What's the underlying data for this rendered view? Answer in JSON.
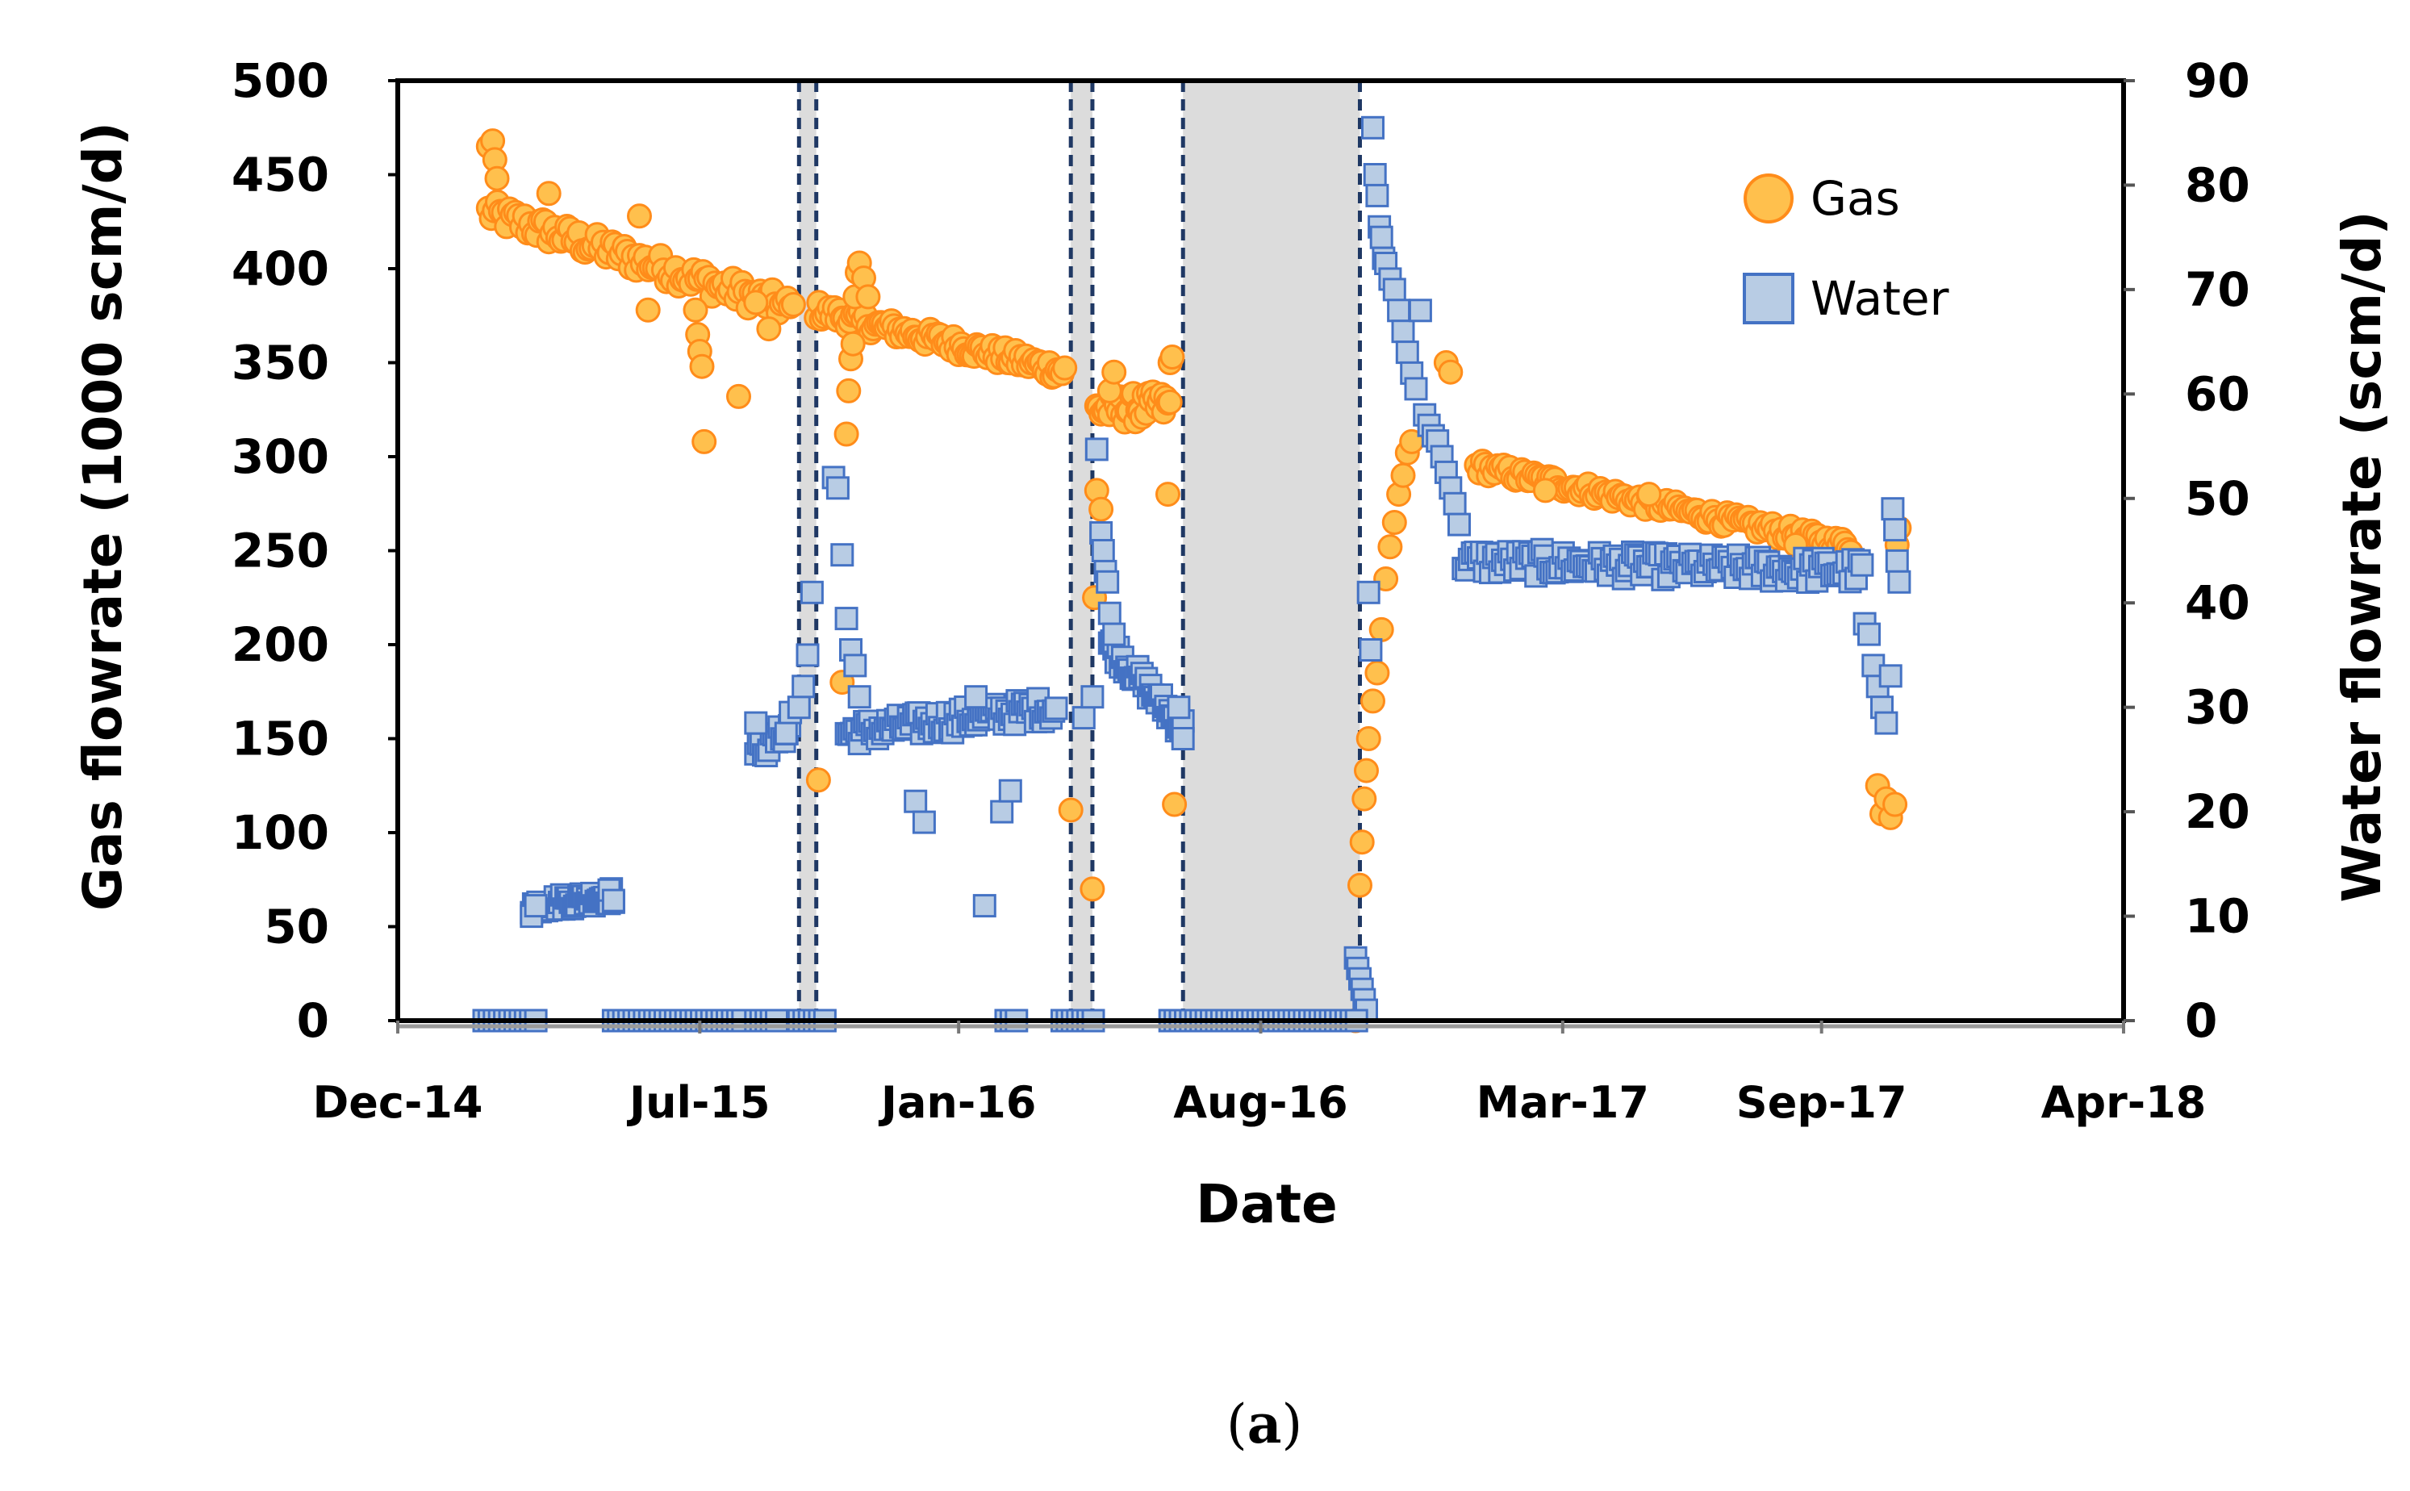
{
  "caption": {
    "open": "(",
    "letter": "a",
    "close": ")"
  },
  "chart_data": {
    "type": "scatter",
    "title": "",
    "xlabel": "Date",
    "ylabel_left": "Gas flowrate (1000 scm/d)",
    "ylabel_right": "Water flowrate (scm/d)",
    "x_unit": "months since Dec-14",
    "x_range": [
      0,
      40
    ],
    "x_ticks": [
      {
        "month": 0,
        "label": "Dec-14"
      },
      {
        "month": 7,
        "label": "Jul-15"
      },
      {
        "month": 13,
        "label": "Jan-16"
      },
      {
        "month": 20,
        "label": "Aug-16"
      },
      {
        "month": 27,
        "label": "Mar-17"
      },
      {
        "month": 33,
        "label": "Sep-17"
      },
      {
        "month": 40,
        "label": "Apr-18"
      }
    ],
    "ylim_left": [
      0,
      500
    ],
    "yticks_left": [
      0,
      50,
      100,
      150,
      200,
      250,
      300,
      350,
      400,
      450,
      500
    ],
    "ylim_right": [
      0,
      90
    ],
    "yticks_right": [
      0,
      10,
      20,
      30,
      40,
      50,
      60,
      70,
      80,
      90
    ],
    "grid": false,
    "legend_position": "top-right",
    "shutdown_periods": [
      {
        "start": 9.3,
        "end": 9.7
      },
      {
        "start": 15.6,
        "end": 16.1
      },
      {
        "start": 18.2,
        "end": 22.3
      }
    ],
    "colors": {
      "gas_fill": "#ffc04d",
      "gas_edge": "#ff8c1a",
      "water_fill": "#b8cce4",
      "water_edge": "#4472c4",
      "shade": "#dcdcdc",
      "dashed_line": "#1f3864"
    },
    "series": [
      {
        "name": "Gas",
        "axis": "left",
        "marker": "circle",
        "segments": [
          {
            "start": 2.1,
            "end": 9.2,
            "step": 0.07,
            "from": 430,
            "to": 378,
            "noise": 7,
            "extras": [
              [
                2.1,
                465
              ],
              [
                2.2,
                468
              ],
              [
                2.25,
                458
              ],
              [
                2.3,
                448
              ],
              [
                3.5,
                440
              ],
              [
                5.6,
                428
              ],
              [
                5.8,
                378
              ],
              [
                6.9,
                378
              ],
              [
                6.95,
                365
              ],
              [
                7.0,
                356
              ],
              [
                7.05,
                348
              ],
              [
                7.1,
                308
              ],
              [
                7.9,
                332
              ],
              [
                8.3,
                382
              ],
              [
                8.6,
                368
              ]
            ]
          },
          {
            "start": 9.7,
            "end": 15.5,
            "step": 0.06,
            "from": 378,
            "to": 345,
            "noise": 5,
            "extras": [
              [
                9.75,
                128
              ],
              [
                10.3,
                180
              ],
              [
                10.4,
                312
              ],
              [
                10.45,
                335
              ],
              [
                10.5,
                352
              ],
              [
                10.55,
                360
              ],
              [
                10.6,
                385
              ],
              [
                10.65,
                398
              ],
              [
                10.7,
                403
              ],
              [
                10.8,
                395
              ],
              [
                10.9,
                385
              ]
            ]
          },
          {
            "start": 16.2,
            "end": 17.9,
            "step": 0.05,
            "from": 325,
            "to": 327,
            "noise": 8,
            "extras": [
              [
                15.6,
                112
              ],
              [
                16.1,
                70
              ],
              [
                16.15,
                225
              ],
              [
                16.2,
                282
              ],
              [
                16.3,
                272
              ],
              [
                16.5,
                335
              ],
              [
                16.6,
                345
              ],
              [
                17.85,
                280
              ],
              [
                17.9,
                350
              ],
              [
                17.95,
                353
              ],
              [
                18.0,
                115
              ]
            ]
          },
          {
            "start": 25.0,
            "end": 33.7,
            "step": 0.07,
            "from": 295,
            "to": 252,
            "noise": 4,
            "extras": [
              [
                22.2,
                0
              ],
              [
                22.3,
                72
              ],
              [
                22.35,
                95
              ],
              [
                22.4,
                118
              ],
              [
                22.45,
                133
              ],
              [
                22.5,
                150
              ],
              [
                22.6,
                170
              ],
              [
                22.7,
                185
              ],
              [
                22.8,
                208
              ],
              [
                22.9,
                235
              ],
              [
                23.0,
                252
              ],
              [
                23.1,
                265
              ],
              [
                23.2,
                280
              ],
              [
                23.3,
                290
              ],
              [
                23.4,
                302
              ],
              [
                23.5,
                308
              ],
              [
                24.3,
                350
              ],
              [
                24.4,
                345
              ],
              [
                26.6,
                282
              ],
              [
                29.0,
                280
              ],
              [
                32.4,
                253
              ],
              [
                34.3,
                125
              ],
              [
                34.4,
                110
              ],
              [
                34.5,
                118
              ],
              [
                34.6,
                108
              ],
              [
                34.7,
                115
              ],
              [
                34.75,
                253
              ],
              [
                34.8,
                262
              ]
            ]
          }
        ]
      },
      {
        "name": "Water",
        "axis": "right",
        "marker": "square",
        "segments": [
          {
            "start": 3.1,
            "end": 5.0,
            "step": 0.05,
            "from": 11.0,
            "to": 12.0,
            "noise": 0.8,
            "extras": [
              [
                3.1,
                10
              ],
              [
                3.2,
                11
              ],
              [
                4.9,
                12.5
              ],
              [
                5.0,
                11.5
              ]
            ]
          },
          {
            "start": 8.3,
            "end": 9.1,
            "step": 0.06,
            "from": 25.5,
            "to": 28.0,
            "noise": 1.0,
            "extras": [
              [
                8.3,
                28.5
              ],
              [
                9.0,
                27.5
              ],
              [
                9.1,
                29.5
              ]
            ]
          },
          {
            "start": 10.4,
            "end": 15.3,
            "step": 0.06,
            "from": 27.5,
            "to": 30.0,
            "noise": 1.2,
            "extras": [
              [
                9.3,
                30
              ],
              [
                9.4,
                32
              ],
              [
                9.5,
                35
              ],
              [
                9.6,
                41
              ],
              [
                10.1,
                52.0
              ],
              [
                10.2,
                51.0
              ],
              [
                10.3,
                44.6
              ],
              [
                10.4,
                38.5
              ],
              [
                10.5,
                35.5
              ],
              [
                10.6,
                34.0
              ],
              [
                10.7,
                31.0
              ],
              [
                12.0,
                21.0
              ],
              [
                12.2,
                19.0
              ],
              [
                13.4,
                31.0
              ],
              [
                13.6,
                11.0
              ],
              [
                14.0,
                20.0
              ],
              [
                14.2,
                22.0
              ]
            ]
          },
          {
            "start": 16.5,
            "end": 18.2,
            "step": 0.05,
            "from": 36.0,
            "to": 28.0,
            "noise": 1.0,
            "extras": [
              [
                15.9,
                29.0
              ],
              [
                16.1,
                31.0
              ],
              [
                16.2,
                54.7
              ],
              [
                16.3,
                46.7
              ],
              [
                16.35,
                45.0
              ],
              [
                16.4,
                43.0
              ],
              [
                16.45,
                42.0
              ],
              [
                16.5,
                39.0
              ],
              [
                16.6,
                37.0
              ],
              [
                18.1,
                30.0
              ],
              [
                18.2,
                27.0
              ]
            ]
          },
          {
            "start": 24.7,
            "end": 34.0,
            "step": 0.07,
            "from": 44.0,
            "to": 43.0,
            "noise": 1.3,
            "extras": [
              [
                22.2,
                6.0
              ],
              [
                22.25,
                5.0
              ],
              [
                22.3,
                4.0
              ],
              [
                22.35,
                3.0
              ],
              [
                22.4,
                2.0
              ],
              [
                22.45,
                1.0
              ],
              [
                22.5,
                41.0
              ],
              [
                22.55,
                35.5
              ],
              [
                22.6,
                85.5
              ],
              [
                22.65,
                81.0
              ],
              [
                22.7,
                79.0
              ],
              [
                22.75,
                76.0
              ],
              [
                22.8,
                75.0
              ],
              [
                22.85,
                73.0
              ],
              [
                22.9,
                72.5
              ],
              [
                23.0,
                71.0
              ],
              [
                23.1,
                70.0
              ],
              [
                23.2,
                68.0
              ],
              [
                23.3,
                66.0
              ],
              [
                23.4,
                64.0
              ],
              [
                23.5,
                62.0
              ],
              [
                23.6,
                60.5
              ],
              [
                23.7,
                68.0
              ],
              [
                23.8,
                58.0
              ],
              [
                23.9,
                57.0
              ],
              [
                24.0,
                56.0
              ],
              [
                24.1,
                55.5
              ],
              [
                24.2,
                54.0
              ],
              [
                24.3,
                52.5
              ],
              [
                24.4,
                51.0
              ],
              [
                24.5,
                49.5
              ],
              [
                24.6,
                47.5
              ],
              [
                34.0,
                38.0
              ],
              [
                34.1,
                37.0
              ],
              [
                34.2,
                34.0
              ],
              [
                34.3,
                32.0
              ],
              [
                34.4,
                30.0
              ],
              [
                34.5,
                28.5
              ],
              [
                34.6,
                33.0
              ],
              [
                34.65,
                49.0
              ],
              [
                34.7,
                47.0
              ],
              [
                34.75,
                44.0
              ],
              [
                34.8,
                42.0
              ]
            ]
          },
          {
            "constant": 0,
            "ranges": [
              [
                2.0,
                3.3
              ],
              [
                5.0,
                8.0
              ],
              [
                8.3,
                8.8
              ],
              [
                9.3,
                10.0
              ],
              [
                14.1,
                14.4
              ],
              [
                15.4,
                15.9
              ],
              [
                16.0,
                16.2
              ],
              [
                17.9,
                22.3
              ]
            ],
            "step": 0.12
          }
        ]
      }
    ]
  }
}
